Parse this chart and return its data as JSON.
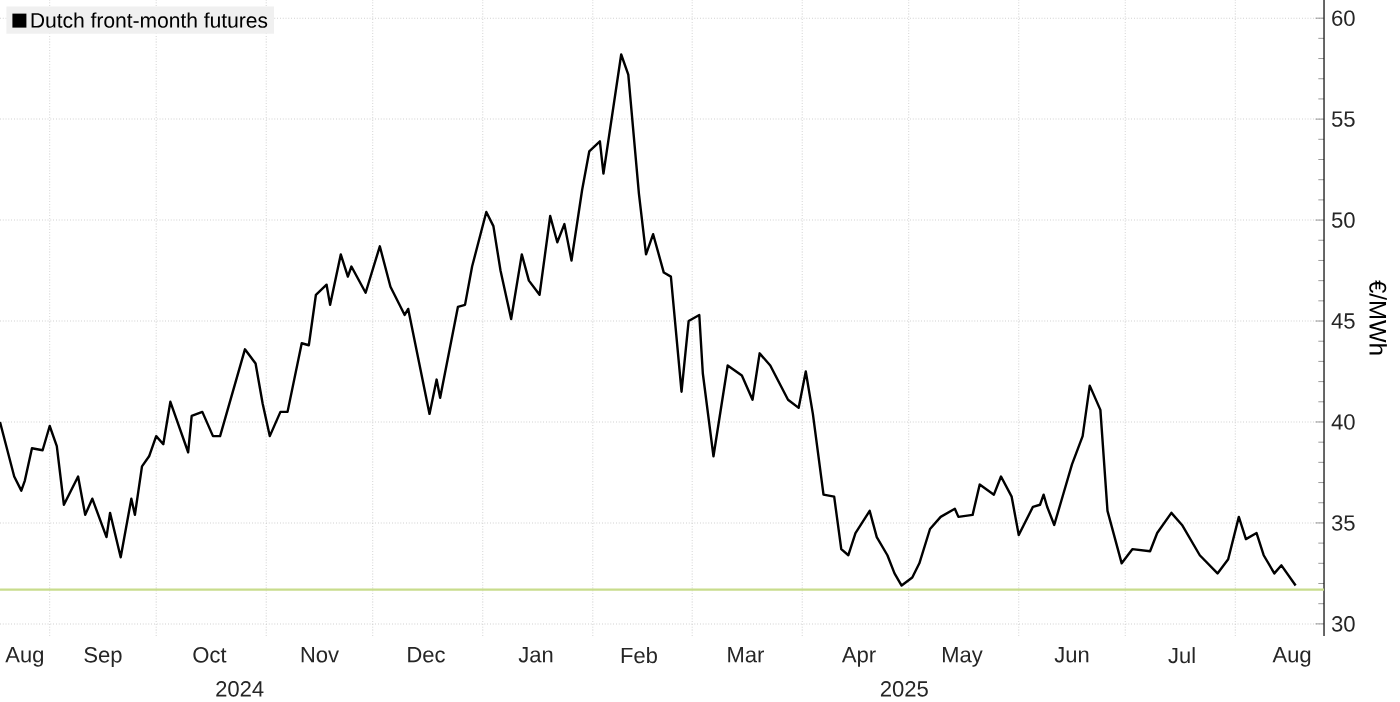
{
  "chart_data": {
    "type": "line",
    "ylabel": "€/MWh",
    "legend": "top left",
    "grid": true,
    "marker": "none",
    "line_style": "solid",
    "xlim": [
      "2024-08-18",
      "2025-08-26"
    ],
    "xticks": [
      {
        "value": "2024-08-25",
        "label": "Aug"
      },
      {
        "value": "2024-09-01",
        "label": null
      },
      {
        "value": "2024-09-16",
        "label": "Sep"
      },
      {
        "value": "2024-10-01",
        "label": null
      },
      {
        "value": "2024-10-16",
        "label": "Oct"
      },
      {
        "value": "2024-11-01",
        "label": null
      },
      {
        "value": "2024-11-16",
        "label": "Nov"
      },
      {
        "value": "2024-12-01",
        "label": null
      },
      {
        "value": "2024-12-16",
        "label": "Dec"
      },
      {
        "value": "2025-01-01",
        "label": null
      },
      {
        "value": "2025-01-16",
        "label": "Jan"
      },
      {
        "value": "2025-02-01",
        "label": null
      },
      {
        "value": "2025-02-14",
        "label": "Feb"
      },
      {
        "value": "2025-03-01",
        "label": null
      },
      {
        "value": "2025-03-16",
        "label": "Mar"
      },
      {
        "value": "2025-04-01",
        "label": null
      },
      {
        "value": "2025-04-17",
        "label": "Apr"
      },
      {
        "value": "2025-05-01",
        "label": null
      },
      {
        "value": "2025-05-16",
        "label": "May"
      },
      {
        "value": "2025-06-01",
        "label": null
      },
      {
        "value": "2025-06-16",
        "label": "Jun"
      },
      {
        "value": "2025-07-01",
        "label": null
      },
      {
        "value": "2025-07-17",
        "label": "Jul"
      },
      {
        "value": "2025-08-01",
        "label": null
      },
      {
        "value": "2025-08-17",
        "label": "Aug"
      }
    ],
    "ylim": [
      29.4,
      60.9
    ],
    "yticks": [
      30,
      35,
      40,
      45,
      50,
      55,
      60
    ],
    "annotations": [
      "2024",
      "2025"
    ],
    "ref_lines": [
      {
        "axis": "y",
        "value": 31.7,
        "color": "#c8dc8c"
      }
    ],
    "series": [
      {
        "name": "Dutch front-month futures",
        "color": "#000000",
        "x": [
          "2024-08-18",
          "2024-08-22",
          "2024-08-24",
          "2024-08-25",
          "2024-08-27",
          "2024-08-30",
          "2024-09-01",
          "2024-09-03",
          "2024-09-05",
          "2024-09-09",
          "2024-09-11",
          "2024-09-13",
          "2024-09-17",
          "2024-09-18",
          "2024-09-21",
          "2024-09-24",
          "2024-09-25",
          "2024-09-27",
          "2024-09-29",
          "2024-10-01",
          "2024-10-03",
          "2024-10-05",
          "2024-10-10",
          "2024-10-11",
          "2024-10-14",
          "2024-10-17",
          "2024-10-19",
          "2024-10-26",
          "2024-10-29",
          "2024-10-31",
          "2024-11-02",
          "2024-11-05",
          "2024-11-07",
          "2024-11-11",
          "2024-11-13",
          "2024-11-15",
          "2024-11-18",
          "2024-11-19",
          "2024-11-22",
          "2024-11-24",
          "2024-11-25",
          "2024-11-29",
          "2024-12-03",
          "2024-12-06",
          "2024-12-10",
          "2024-12-11",
          "2024-12-17",
          "2024-12-19",
          "2024-12-20",
          "2024-12-25",
          "2024-12-27",
          "2024-12-29",
          "2025-01-02",
          "2025-01-04",
          "2025-01-06",
          "2025-01-09",
          "2025-01-12",
          "2025-01-14",
          "2025-01-17",
          "2025-01-20",
          "2025-01-22",
          "2025-01-24",
          "2025-01-26",
          "2025-01-29",
          "2025-01-31",
          "2025-02-03",
          "2025-02-04",
          "2025-02-09",
          "2025-02-11",
          "2025-02-14",
          "2025-02-16",
          "2025-02-18",
          "2025-02-21",
          "2025-02-23",
          "2025-02-26",
          "2025-02-28",
          "2025-03-03",
          "2025-03-04",
          "2025-03-07",
          "2025-03-11",
          "2025-03-15",
          "2025-03-18",
          "2025-03-20",
          "2025-03-23",
          "2025-03-28",
          "2025-03-31",
          "2025-04-02",
          "2025-04-04",
          "2025-04-07",
          "2025-04-10",
          "2025-04-12",
          "2025-04-14",
          "2025-04-16",
          "2025-04-20",
          "2025-04-22",
          "2025-04-25",
          "2025-04-27",
          "2025-04-29",
          "2025-05-02",
          "2025-05-04",
          "2025-05-07",
          "2025-05-10",
          "2025-05-14",
          "2025-05-15",
          "2025-05-19",
          "2025-05-21",
          "2025-05-25",
          "2025-05-27",
          "2025-05-30",
          "2025-06-01",
          "2025-06-05",
          "2025-06-07",
          "2025-06-08",
          "2025-06-09",
          "2025-06-11",
          "2025-06-13",
          "2025-06-16",
          "2025-06-19",
          "2025-06-21",
          "2025-06-24",
          "2025-06-26",
          "2025-06-30",
          "2025-07-03",
          "2025-07-08",
          "2025-07-10",
          "2025-07-14",
          "2025-07-17",
          "2025-07-22",
          "2025-07-27",
          "2025-07-30",
          "2025-08-02",
          "2025-08-04",
          "2025-08-07",
          "2025-08-09",
          "2025-08-12",
          "2025-08-14",
          "2025-08-18"
        ],
        "values": [
          40.0,
          37.3,
          36.6,
          37.1,
          38.7,
          38.6,
          39.8,
          38.8,
          35.9,
          37.3,
          35.4,
          36.2,
          34.3,
          35.5,
          33.3,
          36.2,
          35.4,
          37.8,
          38.3,
          39.3,
          38.9,
          41.0,
          38.5,
          40.3,
          40.5,
          39.3,
          39.3,
          43.6,
          42.9,
          40.9,
          39.3,
          40.5,
          40.5,
          43.9,
          43.8,
          46.3,
          46.8,
          45.8,
          48.3,
          47.2,
          47.7,
          46.4,
          48.7,
          46.7,
          45.3,
          45.6,
          40.4,
          42.1,
          41.2,
          45.7,
          45.8,
          47.7,
          50.4,
          49.7,
          47.5,
          45.1,
          48.3,
          47.0,
          46.3,
          50.2,
          48.9,
          49.8,
          48.0,
          51.5,
          53.4,
          53.9,
          52.3,
          58.2,
          57.2,
          51.3,
          48.3,
          49.3,
          47.4,
          47.2,
          41.5,
          45.0,
          45.3,
          42.4,
          38.3,
          42.8,
          42.3,
          41.1,
          43.4,
          42.8,
          41.1,
          40.7,
          42.5,
          40.4,
          36.4,
          36.3,
          33.7,
          33.4,
          34.5,
          35.6,
          34.3,
          33.4,
          32.5,
          31.9,
          32.3,
          33.0,
          34.7,
          35.3,
          35.7,
          35.3,
          35.4,
          36.9,
          36.4,
          37.3,
          36.3,
          34.4,
          35.8,
          35.9,
          36.4,
          35.8,
          34.9,
          36.1,
          37.9,
          39.3,
          41.8,
          40.6,
          35.6,
          33.0,
          33.7,
          33.6,
          34.5,
          35.5,
          34.9,
          33.4,
          32.5,
          33.2,
          35.3,
          34.2,
          34.5,
          33.4,
          32.5,
          32.9,
          31.9
        ]
      }
    ]
  }
}
